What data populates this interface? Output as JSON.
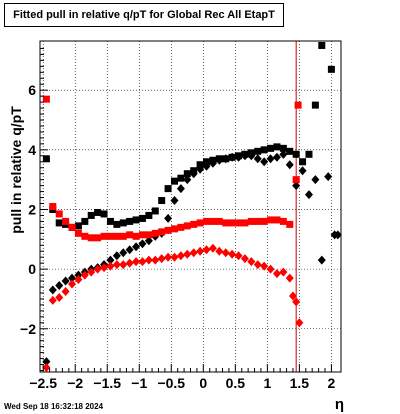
{
  "chart_data": {
    "type": "scatter",
    "title": "Fitted pull in relative q/pT for Global Rec All EtapT",
    "xlabel": "η",
    "ylabel": "pull in relative q/pT",
    "xlim": [
      -2.55,
      2.15
    ],
    "ylim": [
      -3.45,
      7.65
    ],
    "x_ticks": [
      -2.5,
      -2,
      -1.5,
      -1,
      -0.5,
      0,
      0.5,
      1,
      1.5,
      2
    ],
    "x_tick_labels": [
      "−2.5",
      "−2",
      "−1.5",
      "−1",
      "−0.5",
      "0",
      "0.5",
      "1",
      "1.5",
      "2"
    ],
    "y_ticks": [
      -2,
      0,
      2,
      4,
      6
    ],
    "y_tick_labels": [
      "−2",
      "0",
      "2",
      "4",
      "6"
    ],
    "grid": true,
    "vertical_line_x": 1.45,
    "timestamp": "Wed Sep 18 16:32:18 2024",
    "series": [
      {
        "color": "#000000",
        "marker": "square",
        "points": [
          [
            -2.45,
            3.7
          ],
          [
            -2.35,
            2.0
          ],
          [
            -2.25,
            1.55
          ],
          [
            -2.15,
            1.5
          ],
          [
            -2.05,
            1.4
          ],
          [
            -1.95,
            1.45
          ],
          [
            -1.85,
            1.6
          ],
          [
            -1.75,
            1.8
          ],
          [
            -1.65,
            1.9
          ],
          [
            -1.55,
            1.85
          ],
          [
            -1.45,
            1.6
          ],
          [
            -1.35,
            1.5
          ],
          [
            -1.25,
            1.55
          ],
          [
            -1.15,
            1.6
          ],
          [
            -1.05,
            1.65
          ],
          [
            -0.95,
            1.7
          ],
          [
            -0.85,
            1.8
          ],
          [
            -0.75,
            1.95
          ],
          [
            -0.65,
            2.3
          ],
          [
            -0.55,
            2.7
          ],
          [
            -0.45,
            2.95
          ],
          [
            -0.35,
            3.05
          ],
          [
            -0.25,
            3.2
          ],
          [
            -0.15,
            3.3
          ],
          [
            -0.05,
            3.5
          ],
          [
            0.05,
            3.6
          ],
          [
            0.15,
            3.65
          ],
          [
            0.25,
            3.7
          ],
          [
            0.35,
            3.7
          ],
          [
            0.45,
            3.75
          ],
          [
            0.55,
            3.8
          ],
          [
            0.65,
            3.85
          ],
          [
            0.75,
            3.9
          ],
          [
            0.85,
            3.95
          ],
          [
            0.95,
            4.0
          ],
          [
            1.05,
            4.05
          ],
          [
            1.15,
            4.1
          ],
          [
            1.25,
            4.05
          ],
          [
            1.35,
            3.95
          ],
          [
            1.45,
            3.85
          ],
          [
            1.55,
            3.6
          ],
          [
            1.65,
            3.85
          ],
          [
            1.75,
            5.5
          ],
          [
            1.85,
            7.5
          ],
          [
            2.0,
            6.7
          ]
        ]
      },
      {
        "color": "#000000",
        "marker": "diamond",
        "points": [
          [
            -2.45,
            -3.1
          ],
          [
            -2.35,
            -0.7
          ],
          [
            -2.25,
            -0.55
          ],
          [
            -2.15,
            -0.4
          ],
          [
            -2.05,
            -0.3
          ],
          [
            -1.95,
            -0.2
          ],
          [
            -1.85,
            -0.1
          ],
          [
            -1.75,
            0.0
          ],
          [
            -1.65,
            0.05
          ],
          [
            -1.55,
            0.15
          ],
          [
            -1.45,
            0.3
          ],
          [
            -1.35,
            0.45
          ],
          [
            -1.25,
            0.55
          ],
          [
            -1.15,
            0.65
          ],
          [
            -1.05,
            0.75
          ],
          [
            -0.95,
            0.85
          ],
          [
            -0.85,
            0.95
          ],
          [
            -0.75,
            1.1
          ],
          [
            -0.65,
            1.2
          ],
          [
            -0.55,
            1.7
          ],
          [
            -0.45,
            2.3
          ],
          [
            -0.35,
            2.7
          ],
          [
            -0.25,
            3.0
          ],
          [
            -0.15,
            3.2
          ],
          [
            -0.05,
            3.35
          ],
          [
            0.05,
            3.45
          ],
          [
            0.15,
            3.55
          ],
          [
            0.25,
            3.65
          ],
          [
            0.35,
            3.7
          ],
          [
            0.45,
            3.75
          ],
          [
            0.55,
            3.75
          ],
          [
            0.65,
            3.8
          ],
          [
            0.75,
            3.8
          ],
          [
            0.85,
            3.7
          ],
          [
            0.95,
            3.6
          ],
          [
            1.05,
            3.7
          ],
          [
            1.15,
            3.75
          ],
          [
            1.25,
            3.85
          ],
          [
            1.35,
            3.5
          ],
          [
            1.45,
            2.8
          ],
          [
            1.55,
            3.3
          ],
          [
            1.65,
            2.5
          ],
          [
            1.75,
            3.0
          ],
          [
            1.85,
            0.3
          ],
          [
            1.95,
            3.1
          ],
          [
            2.05,
            1.15
          ],
          [
            2.1,
            1.15
          ]
        ]
      },
      {
        "color": "#ff0000",
        "marker": "square",
        "points": [
          [
            -2.45,
            5.7
          ],
          [
            -2.35,
            2.1
          ],
          [
            -2.25,
            1.85
          ],
          [
            -2.15,
            1.6
          ],
          [
            -2.05,
            1.4
          ],
          [
            -1.95,
            1.2
          ],
          [
            -1.85,
            1.1
          ],
          [
            -1.75,
            1.05
          ],
          [
            -1.65,
            1.05
          ],
          [
            -1.55,
            1.1
          ],
          [
            -1.45,
            1.1
          ],
          [
            -1.35,
            1.1
          ],
          [
            -1.25,
            1.1
          ],
          [
            -1.15,
            1.15
          ],
          [
            -1.05,
            1.1
          ],
          [
            -0.95,
            1.15
          ],
          [
            -0.85,
            1.15
          ],
          [
            -0.75,
            1.2
          ],
          [
            -0.65,
            1.25
          ],
          [
            -0.55,
            1.3
          ],
          [
            -0.45,
            1.35
          ],
          [
            -0.35,
            1.4
          ],
          [
            -0.25,
            1.45
          ],
          [
            -0.15,
            1.5
          ],
          [
            -0.05,
            1.55
          ],
          [
            0.05,
            1.6
          ],
          [
            0.15,
            1.6
          ],
          [
            0.25,
            1.6
          ],
          [
            0.35,
            1.55
          ],
          [
            0.45,
            1.55
          ],
          [
            0.55,
            1.55
          ],
          [
            0.65,
            1.55
          ],
          [
            0.75,
            1.6
          ],
          [
            0.85,
            1.6
          ],
          [
            0.95,
            1.6
          ],
          [
            1.05,
            1.65
          ],
          [
            1.15,
            1.65
          ],
          [
            1.25,
            1.6
          ],
          [
            1.35,
            1.5
          ],
          [
            1.45,
            3.0
          ],
          [
            1.48,
            5.5
          ]
        ]
      },
      {
        "color": "#ff0000",
        "marker": "diamond",
        "points": [
          [
            -2.45,
            -3.3
          ],
          [
            -2.35,
            -1.05
          ],
          [
            -2.25,
            -0.95
          ],
          [
            -2.15,
            -0.75
          ],
          [
            -2.05,
            -0.5
          ],
          [
            -1.95,
            -0.35
          ],
          [
            -1.85,
            -0.2
          ],
          [
            -1.75,
            -0.1
          ],
          [
            -1.65,
            0.0
          ],
          [
            -1.55,
            0.05
          ],
          [
            -1.45,
            0.1
          ],
          [
            -1.35,
            0.15
          ],
          [
            -1.25,
            0.15
          ],
          [
            -1.15,
            0.2
          ],
          [
            -1.05,
            0.25
          ],
          [
            -0.95,
            0.25
          ],
          [
            -0.85,
            0.3
          ],
          [
            -0.75,
            0.3
          ],
          [
            -0.65,
            0.35
          ],
          [
            -0.55,
            0.4
          ],
          [
            -0.45,
            0.4
          ],
          [
            -0.35,
            0.45
          ],
          [
            -0.25,
            0.5
          ],
          [
            -0.15,
            0.55
          ],
          [
            -0.05,
            0.6
          ],
          [
            0.05,
            0.65
          ],
          [
            0.15,
            0.7
          ],
          [
            0.25,
            0.6
          ],
          [
            0.35,
            0.55
          ],
          [
            0.45,
            0.5
          ],
          [
            0.55,
            0.45
          ],
          [
            0.65,
            0.35
          ],
          [
            0.75,
            0.25
          ],
          [
            0.85,
            0.15
          ],
          [
            0.95,
            0.1
          ],
          [
            1.05,
            0.0
          ],
          [
            1.15,
            -0.15
          ],
          [
            1.25,
            -0.1
          ],
          [
            1.35,
            -0.3
          ],
          [
            1.4,
            -0.9
          ],
          [
            1.45,
            -1.1
          ],
          [
            1.5,
            -1.8
          ]
        ]
      }
    ]
  }
}
